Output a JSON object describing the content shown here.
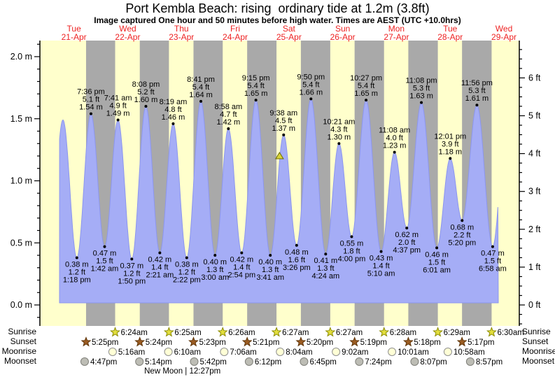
{
  "header": {
    "title": "Port Kembla Beach: rising  ordinary tide at 1.2m (3.8ft)",
    "subtitle": "Image captured One hour and 50 minutes before high water. Times are AEST (UTC +10.0hrs)"
  },
  "chart_data": {
    "type": "area",
    "title": "Port Kembla Beach: rising  ordinary tide at 1.2m (3.8ft)",
    "subtitle": "Image captured One hour and 50 minutes before high water. Times are AEST (UTC +10.0hrs)",
    "y_axis_left": {
      "unit": "m",
      "min": 0.0,
      "max": 2.0,
      "major_step": 0.5,
      "minor_step": 0.1
    },
    "y_axis_right": {
      "unit": "ft",
      "min": 0,
      "max": 6,
      "major_step": 1,
      "minor_step": 0.25
    },
    "days": [
      {
        "weekday": "Tue",
        "date": "21-Apr"
      },
      {
        "weekday": "Wed",
        "date": "22-Apr"
      },
      {
        "weekday": "Thu",
        "date": "23-Apr"
      },
      {
        "weekday": "Fri",
        "date": "24-Apr"
      },
      {
        "weekday": "Sat",
        "date": "25-Apr"
      },
      {
        "weekday": "Sun",
        "date": "26-Apr"
      },
      {
        "weekday": "Mon",
        "date": "27-Apr"
      },
      {
        "weekday": "Tue",
        "date": "28-Apr"
      },
      {
        "weekday": "Wed",
        "date": "29-Apr"
      }
    ],
    "extremes": [
      {
        "day": 0,
        "time": "1:18 pm",
        "height_m": 0.38,
        "height_ft": 1.2,
        "type": "low"
      },
      {
        "day": 0,
        "time": "7:36 pm",
        "height_m": 1.54,
        "height_ft": 5.1,
        "type": "high"
      },
      {
        "day": 1,
        "time": "1:42 am",
        "height_m": 0.47,
        "height_ft": 1.5,
        "type": "low"
      },
      {
        "day": 1,
        "time": "7:41 am",
        "height_m": 1.49,
        "height_ft": 4.9,
        "type": "high"
      },
      {
        "day": 1,
        "time": "1:50 pm",
        "height_m": 0.37,
        "height_ft": 1.2,
        "type": "low"
      },
      {
        "day": 1,
        "time": "8:08 pm",
        "height_m": 1.6,
        "height_ft": 5.2,
        "type": "high"
      },
      {
        "day": 2,
        "time": "2:21 am",
        "height_m": 0.42,
        "height_ft": 1.4,
        "type": "low"
      },
      {
        "day": 2,
        "time": "8:19 am",
        "height_m": 1.46,
        "height_ft": 4.8,
        "type": "high"
      },
      {
        "day": 2,
        "time": "2:22 pm",
        "height_m": 0.38,
        "height_ft": 1.2,
        "type": "low"
      },
      {
        "day": 2,
        "time": "8:41 pm",
        "height_m": 1.64,
        "height_ft": 5.4,
        "type": "high"
      },
      {
        "day": 3,
        "time": "3:00 am",
        "height_m": 0.4,
        "height_ft": 1.3,
        "type": "low"
      },
      {
        "day": 3,
        "time": "8:58 am",
        "height_m": 1.42,
        "height_ft": 4.7,
        "type": "high"
      },
      {
        "day": 3,
        "time": "2:54 pm",
        "height_m": 0.42,
        "height_ft": 1.4,
        "type": "low"
      },
      {
        "day": 3,
        "time": "9:15 pm",
        "height_m": 1.65,
        "height_ft": 5.4,
        "type": "high"
      },
      {
        "day": 4,
        "time": "3:41 am",
        "height_m": 0.4,
        "height_ft": 1.3,
        "type": "low"
      },
      {
        "day": 4,
        "time": "9:38 am",
        "height_m": 1.37,
        "height_ft": 4.5,
        "type": "high"
      },
      {
        "day": 4,
        "time": "3:26 pm",
        "height_m": 0.48,
        "height_ft": 1.6,
        "type": "low"
      },
      {
        "day": 4,
        "time": "9:50 pm",
        "height_m": 1.66,
        "height_ft": 5.4,
        "type": "high"
      },
      {
        "day": 5,
        "time": "4:24 am",
        "height_m": 0.41,
        "height_ft": 1.3,
        "type": "low"
      },
      {
        "day": 5,
        "time": "10:21 am",
        "height_m": 1.3,
        "height_ft": 4.3,
        "type": "high"
      },
      {
        "day": 5,
        "time": "4:00 pm",
        "height_m": 0.55,
        "height_ft": 1.8,
        "type": "low"
      },
      {
        "day": 5,
        "time": "10:27 pm",
        "height_m": 1.65,
        "height_ft": 5.4,
        "type": "high"
      },
      {
        "day": 6,
        "time": "5:10 am",
        "height_m": 0.43,
        "height_ft": 1.4,
        "type": "low"
      },
      {
        "day": 6,
        "time": "11:08 am",
        "height_m": 1.23,
        "height_ft": 4.0,
        "type": "high"
      },
      {
        "day": 6,
        "time": "4:37 pm",
        "height_m": 0.62,
        "height_ft": 2.0,
        "type": "low"
      },
      {
        "day": 6,
        "time": "11:08 pm",
        "height_m": 1.63,
        "height_ft": 5.3,
        "type": "high"
      },
      {
        "day": 7,
        "time": "6:01 am",
        "height_m": 0.46,
        "height_ft": 1.5,
        "type": "low"
      },
      {
        "day": 7,
        "time": "12:01 pm",
        "height_m": 1.18,
        "height_ft": 3.9,
        "type": "high"
      },
      {
        "day": 7,
        "time": "5:20 pm",
        "height_m": 0.68,
        "height_ft": 2.2,
        "type": "low"
      },
      {
        "day": 7,
        "time": "11:56 pm",
        "height_m": 1.61,
        "height_ft": 5.3,
        "type": "high"
      },
      {
        "day": 8,
        "time": "6:58 am",
        "height_m": 0.47,
        "height_ft": 1.5,
        "type": "low"
      }
    ],
    "curve_anchors": [
      {
        "day": 0,
        "hour": 1.0,
        "height_m": 0.45
      },
      {
        "day": 0,
        "hour": 7.1,
        "height_m": 1.49
      },
      {
        "day": 8,
        "hour": 13.2,
        "height_m": 1.5
      }
    ],
    "current_marker": {
      "height_m": 1.2,
      "day": 4,
      "hour": 7.8
    },
    "astro": {
      "rows": [
        {
          "label": "Sunrise",
          "icon": "sunrise-star",
          "fill": "#e3df3e",
          "stroke": "#8a8a00",
          "events": [
            {
              "day": 1,
              "time": "6:24am"
            },
            {
              "day": 2,
              "time": "6:25am"
            },
            {
              "day": 3,
              "time": "6:26am"
            },
            {
              "day": 4,
              "time": "6:27am"
            },
            {
              "day": 5,
              "time": "6:27am"
            },
            {
              "day": 6,
              "time": "6:28am"
            },
            {
              "day": 7,
              "time": "6:29am"
            },
            {
              "day": 8,
              "time": "6:30am"
            }
          ]
        },
        {
          "label": "Sunset",
          "icon": "sunset-star",
          "fill": "#9b5c22",
          "stroke": "#5e3408",
          "events": [
            {
              "day": 0,
              "time": "5:25pm"
            },
            {
              "day": 1,
              "time": "5:24pm"
            },
            {
              "day": 2,
              "time": "5:23pm"
            },
            {
              "day": 3,
              "time": "5:21pm"
            },
            {
              "day": 4,
              "time": "5:20pm"
            },
            {
              "day": 5,
              "time": "5:19pm"
            },
            {
              "day": 6,
              "time": "5:18pm"
            },
            {
              "day": 7,
              "time": "5:17pm"
            }
          ]
        },
        {
          "label": "Moonrise",
          "icon": "moonrise-circle",
          "fill": "#ffffd6",
          "stroke": "#8f8f8f",
          "events": [
            {
              "day": 1,
              "time": "5:16am"
            },
            {
              "day": 2,
              "time": "6:10am"
            },
            {
              "day": 3,
              "time": "7:06am"
            },
            {
              "day": 4,
              "time": "8:04am"
            },
            {
              "day": 5,
              "time": "9:02am"
            },
            {
              "day": 6,
              "time": "10:01am"
            },
            {
              "day": 7,
              "time": "10:58am"
            }
          ]
        },
        {
          "label": "Moonset",
          "icon": "moonset-circle",
          "fill": "#bdbdb5",
          "stroke": "#80807a",
          "events": [
            {
              "day": 0,
              "time": "4:47pm"
            },
            {
              "day": 1,
              "time": "5:14pm"
            },
            {
              "day": 2,
              "time": "5:42pm"
            },
            {
              "day": 3,
              "time": "6:12pm"
            },
            {
              "day": 4,
              "time": "6:45pm"
            },
            {
              "day": 5,
              "time": "7:24pm"
            },
            {
              "day": 6,
              "time": "8:07pm"
            },
            {
              "day": 7,
              "time": "8:57pm"
            }
          ]
        }
      ],
      "new_moon": {
        "label": "New Moon",
        "time": "12:27pm",
        "day": 2,
        "hour": 12.45
      }
    },
    "colors": {
      "day_band": "#ffffcc",
      "night_band": "#a9a9a9",
      "water": "#a5adf6",
      "water_edge": "#8c96ef",
      "day_label": "#ee2222",
      "axis": "#000000",
      "marker_fill": "#d9d33a",
      "marker_stroke": "#6b6b00"
    }
  }
}
